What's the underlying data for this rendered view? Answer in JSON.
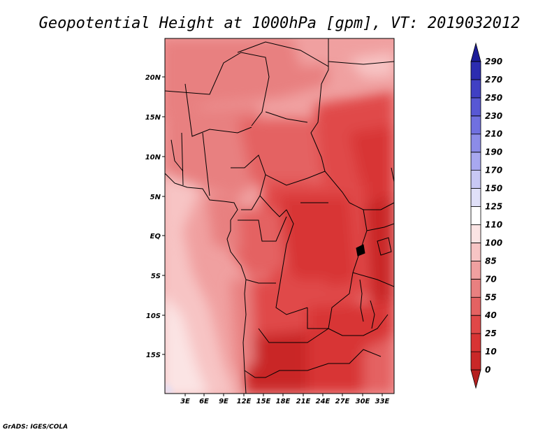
{
  "title": "Geopotential Height at 1000hPa [gpm], VT: 2019032012",
  "credit": "GrADS: IGES/COLA",
  "map": {
    "lon_labels": [
      "3E",
      "6E",
      "9E",
      "12E",
      "15E",
      "18E",
      "21E",
      "24E",
      "27E",
      "30E",
      "33E"
    ],
    "lat_labels": [
      "20N",
      "15N",
      "10N",
      "5N",
      "EQ",
      "5S",
      "10S",
      "15S"
    ]
  },
  "colorbar": {
    "levels": [
      "0",
      "10",
      "25",
      "40",
      "55",
      "70",
      "85",
      "100",
      "110",
      "125",
      "150",
      "170",
      "190",
      "210",
      "230",
      "250",
      "270",
      "290"
    ],
    "colors": [
      "#b52020",
      "#c92828",
      "#d83434",
      "#e04848",
      "#e46262",
      "#e88080",
      "#f0a0a0",
      "#f7c4c4",
      "#fbe4e4",
      "#ffffff",
      "#e0e0f8",
      "#c8c8f4",
      "#a8a8f0",
      "#8c8ce8",
      "#7070e0",
      "#5858d4",
      "#4040c4",
      "#2c2cb0",
      "#1c1c98"
    ]
  }
}
